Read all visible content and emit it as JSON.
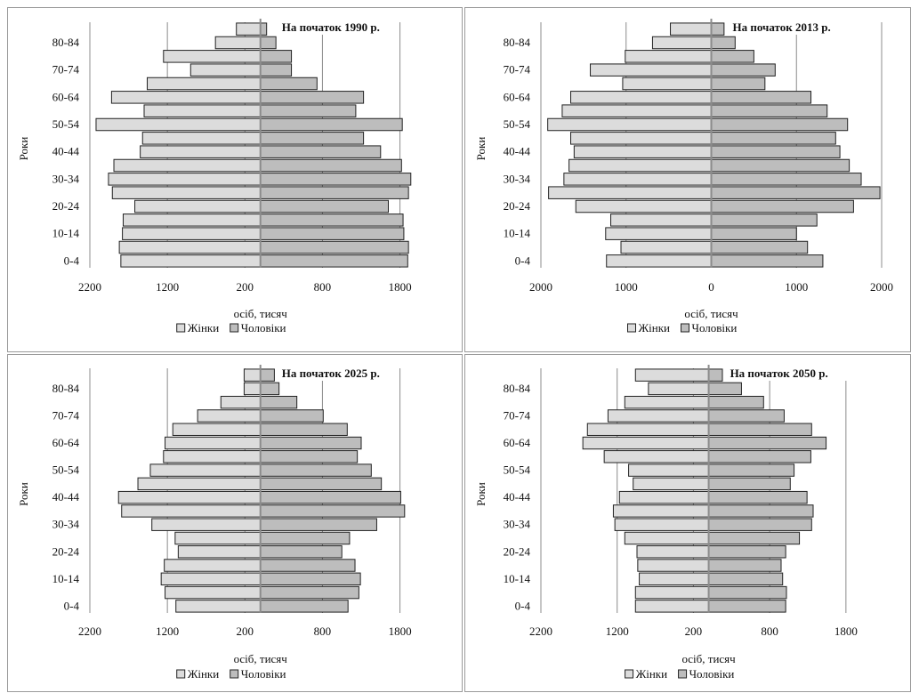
{
  "chart_data": [
    {
      "type": "bar",
      "title": "На початок 1990 р.",
      "ylabel": "Роки",
      "xlabel": "осіб, тисяч",
      "x_tick_labels": [
        "2200",
        "1200",
        "200",
        "800",
        "1800"
      ],
      "x_tick_values": [
        -2200,
        -1200,
        -200,
        800,
        1800
      ],
      "xlim": [
        -2200,
        2000
      ],
      "categories": [
        "0-4",
        "5-9",
        "10-14",
        "15-19",
        "20-24",
        "25-29",
        "30-34",
        "35-39",
        "40-44",
        "45-49",
        "50-54",
        "55-59",
        "60-64",
        "65-69",
        "70-74",
        "75-79",
        "80-84",
        "85+"
      ],
      "y_tick_labels": [
        "0-4",
        "10-14",
        "20-24",
        "30-34",
        "40-44",
        "50-54",
        "60-64",
        "70-74",
        "80-84"
      ],
      "legend": [
        "Жінки",
        "Чоловіки"
      ],
      "series": [
        {
          "name": "Жінки",
          "values": [
            1800,
            1820,
            1780,
            1770,
            1620,
            1910,
            1960,
            1890,
            1550,
            1520,
            2120,
            1500,
            1920,
            1460,
            900,
            1250,
            580,
            310
          ]
        },
        {
          "name": "Чоловіки",
          "values": [
            1900,
            1910,
            1850,
            1840,
            1650,
            1910,
            1940,
            1820,
            1550,
            1330,
            1830,
            1230,
            1330,
            730,
            400,
            400,
            200,
            80
          ]
        }
      ]
    },
    {
      "type": "bar",
      "title": "На початок 2013 р.",
      "ylabel": "Роки",
      "xlabel": "осіб, тисяч",
      "x_tick_labels": [
        "2000",
        "1000",
        "0",
        "1000",
        "2000"
      ],
      "x_tick_values": [
        -2000,
        -1000,
        0,
        1000,
        2000
      ],
      "xlim": [
        -2000,
        2000
      ],
      "categories": [
        "0-4",
        "5-9",
        "10-14",
        "15-19",
        "20-24",
        "25-29",
        "30-34",
        "35-39",
        "40-44",
        "45-49",
        "50-54",
        "55-59",
        "60-64",
        "65-69",
        "70-74",
        "75-79",
        "80-84",
        "85+"
      ],
      "y_tick_labels": [
        "0-4",
        "10-14",
        "20-24",
        "30-34",
        "40-44",
        "50-54",
        "60-64",
        "70-74",
        "80-84"
      ],
      "legend": [
        "Жінки",
        "Чоловіки"
      ],
      "series": [
        {
          "name": "Жінки",
          "values": [
            1230,
            1060,
            1240,
            1180,
            1590,
            1910,
            1730,
            1670,
            1610,
            1650,
            1920,
            1750,
            1650,
            1040,
            1420,
            1010,
            690,
            480
          ]
        },
        {
          "name": "Чоловіки",
          "values": [
            1310,
            1130,
            1000,
            1240,
            1670,
            1980,
            1760,
            1620,
            1510,
            1460,
            1600,
            1360,
            1170,
            630,
            750,
            500,
            280,
            150
          ]
        }
      ]
    },
    {
      "type": "bar",
      "title": "На початок 2025 р.",
      "ylabel": "Роки",
      "xlabel": "осіб, тисяч",
      "x_tick_labels": [
        "2200",
        "1200",
        "200",
        "800",
        "1800"
      ],
      "x_tick_values": [
        -2200,
        -1200,
        -200,
        800,
        1800
      ],
      "xlim": [
        -2200,
        2000
      ],
      "categories": [
        "0-4",
        "5-9",
        "10-14",
        "15-19",
        "20-24",
        "25-29",
        "30-34",
        "35-39",
        "40-44",
        "45-49",
        "50-54",
        "55-59",
        "60-64",
        "65-69",
        "70-74",
        "75-79",
        "80-84",
        "85+"
      ],
      "y_tick_labels": [
        "0-4",
        "10-14",
        "20-24",
        "30-34",
        "40-44",
        "50-54",
        "60-64",
        "70-74",
        "80-84"
      ],
      "legend": [
        "Жінки",
        "Чоловіки"
      ],
      "series": [
        {
          "name": "Жінки",
          "values": [
            1090,
            1230,
            1280,
            1240,
            1060,
            1100,
            1400,
            1790,
            1830,
            1580,
            1420,
            1250,
            1230,
            1130,
            810,
            510,
            210,
            210
          ]
        },
        {
          "name": "Чоловіки",
          "values": [
            1130,
            1270,
            1290,
            1220,
            1050,
            1150,
            1500,
            1860,
            1810,
            1560,
            1430,
            1250,
            1300,
            1120,
            810,
            470,
            240,
            180
          ]
        }
      ]
    },
    {
      "type": "bar",
      "title": "На початок 2050 р.",
      "ylabel": "Роки",
      "xlabel": "осіб, тисяч",
      "x_tick_labels": [
        "2200",
        "1200",
        "200",
        "800",
        "1800"
      ],
      "x_tick_values": [
        -2200,
        -1200,
        -200,
        800,
        1800
      ],
      "xlim": [
        -2200,
        2000
      ],
      "categories": [
        "0-4",
        "5-9",
        "10-14",
        "15-19",
        "20-24",
        "25-29",
        "30-34",
        "35-39",
        "40-44",
        "45-49",
        "50-54",
        "55-59",
        "60-64",
        "65-69",
        "70-74",
        "75-79",
        "80-84",
        "85+"
      ],
      "y_tick_labels": [
        "0-4",
        "10-14",
        "20-24",
        "30-34",
        "40-44",
        "50-54",
        "60-64",
        "70-74",
        "80-84"
      ],
      "legend": [
        "Жінки",
        "Чоловіки"
      ],
      "series": [
        {
          "name": "Жінки",
          "values": [
            960,
            960,
            910,
            930,
            940,
            1100,
            1230,
            1250,
            1170,
            990,
            1050,
            1370,
            1650,
            1590,
            1320,
            1100,
            790,
            960
          ]
        },
        {
          "name": "Чоловіки",
          "values": [
            1010,
            1020,
            970,
            950,
            1010,
            1190,
            1350,
            1370,
            1290,
            1070,
            1120,
            1340,
            1540,
            1350,
            990,
            720,
            430,
            180
          ]
        }
      ]
    }
  ]
}
